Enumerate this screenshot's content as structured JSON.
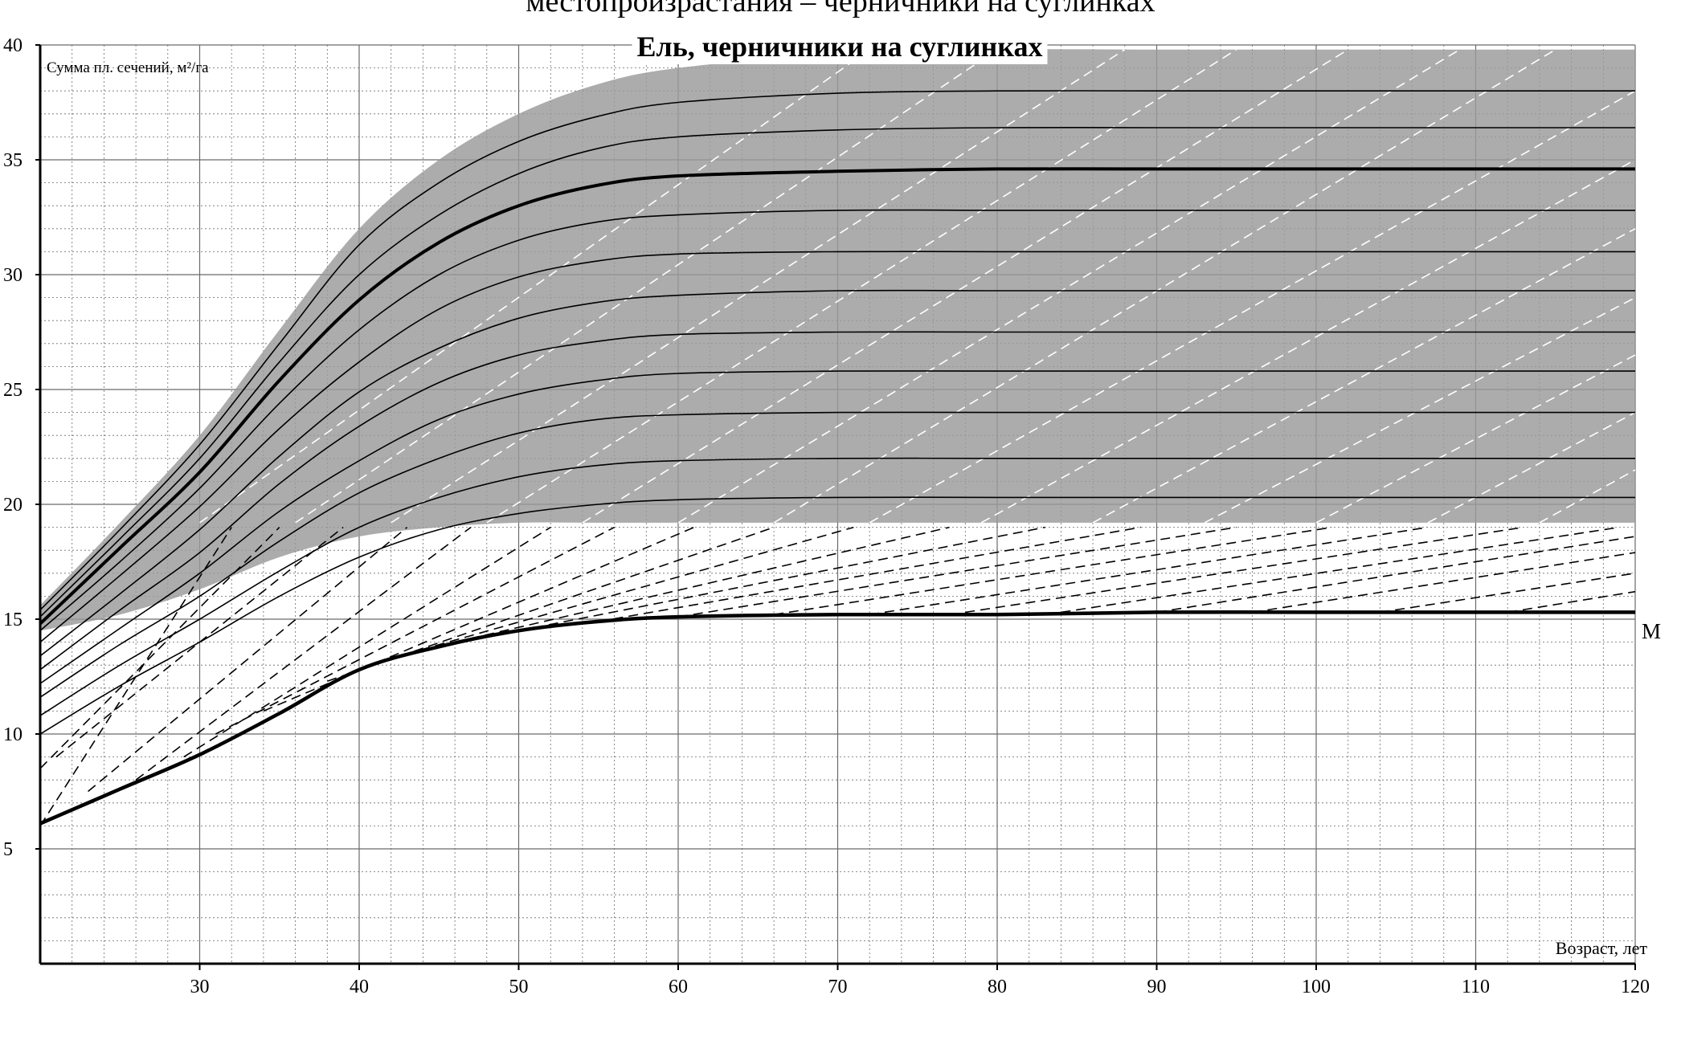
{
  "page_caption": "местопроизрастания – черничники на суглинках",
  "chart_data": {
    "type": "line",
    "title": "Ель, черничники на суглинках",
    "ylabel": "Сумма пл. сечений, м²/га",
    "xlabel": "Возраст, лет",
    "xlim": [
      20,
      120
    ],
    "ylim": [
      0,
      40
    ],
    "x_ticks": [
      30,
      40,
      50,
      60,
      70,
      80,
      90,
      100,
      110,
      120
    ],
    "y_ticks": [
      5,
      10,
      15,
      20,
      25,
      30,
      35,
      40
    ],
    "grid": true,
    "colors": {
      "band": "#9a9a9a",
      "line": "#000000",
      "grid": "#6a6a6a",
      "background": "#ffffff"
    },
    "x": [
      20,
      25,
      30,
      35,
      40,
      45,
      50,
      55,
      60,
      70,
      80,
      90,
      100,
      110,
      120
    ],
    "band": {
      "upper": [
        15.6,
        19.2,
        23.0,
        27.6,
        32.0,
        35.0,
        37.0,
        38.3,
        39.0,
        39.6,
        39.8,
        39.8,
        39.8,
        39.8,
        39.8
      ],
      "lower": [
        14.5,
        15.2,
        16.3,
        17.7,
        18.6,
        19.0,
        19.2,
        19.2,
        19.2,
        19.2,
        19.2,
        19.2,
        19.2,
        19.2,
        19.2
      ]
    },
    "series": [
      {
        "values": [
          15.4,
          18.9,
          22.6,
          27.0,
          31.3,
          34.0,
          35.8,
          36.9,
          37.5,
          37.9,
          38.0,
          38.0,
          38.0,
          38.0,
          38.0
        ]
      },
      {
        "values": [
          15.1,
          18.5,
          22.0,
          26.2,
          30.0,
          32.6,
          34.4,
          35.5,
          36.0,
          36.3,
          36.4,
          36.4,
          36.4,
          36.4,
          36.4
        ]
      },
      {
        "values": [
          14.8,
          18.1,
          21.4,
          25.4,
          28.9,
          31.4,
          33.0,
          33.9,
          34.3,
          34.5,
          34.6,
          34.6,
          34.6,
          34.6,
          34.6
        ],
        "emphasis": true
      },
      {
        "values": [
          14.5,
          17.5,
          20.7,
          24.4,
          27.6,
          30.0,
          31.5,
          32.3,
          32.6,
          32.8,
          32.8,
          32.8,
          32.8,
          32.8,
          32.8
        ]
      },
      {
        "values": [
          14.0,
          16.9,
          19.9,
          23.3,
          26.2,
          28.5,
          29.9,
          30.6,
          30.9,
          31.0,
          31.0,
          31.0,
          31.0,
          31.0,
          31.0
        ]
      },
      {
        "values": [
          13.4,
          16.1,
          18.9,
          22.1,
          24.9,
          26.8,
          28.1,
          28.8,
          29.1,
          29.3,
          29.3,
          29.3,
          29.3,
          29.3,
          29.3
        ]
      },
      {
        "values": [
          12.8,
          15.4,
          17.9,
          20.9,
          23.4,
          25.3,
          26.5,
          27.1,
          27.4,
          27.5,
          27.5,
          27.5,
          27.5,
          27.5,
          27.5
        ]
      },
      {
        "values": [
          12.2,
          14.6,
          17.0,
          19.7,
          21.9,
          23.7,
          24.8,
          25.4,
          25.7,
          25.8,
          25.8,
          25.8,
          25.8,
          25.8,
          25.8
        ]
      },
      {
        "values": [
          11.6,
          13.9,
          16.0,
          18.4,
          20.5,
          22.0,
          23.1,
          23.7,
          23.9,
          24.0,
          24.0,
          24.0,
          24.0,
          24.0,
          24.0
        ]
      },
      {
        "values": [
          10.8,
          13.0,
          15.0,
          17.1,
          19.0,
          20.3,
          21.2,
          21.7,
          21.9,
          22.0,
          22.0,
          22.0,
          22.0,
          22.0,
          22.0
        ]
      },
      {
        "values": [
          10.0,
          12.1,
          14.0,
          16.0,
          17.7,
          18.9,
          19.6,
          20.0,
          20.2,
          20.3,
          20.3,
          20.3,
          20.3,
          20.3,
          20.3
        ]
      }
    ],
    "min_line": {
      "label": "М",
      "values": [
        6.1,
        7.6,
        9.1,
        10.9,
        12.8,
        13.8,
        14.5,
        14.9,
        15.1,
        15.2,
        15.2,
        15.3,
        15.3,
        15.3,
        15.3
      ]
    },
    "dashed_lines": [
      {
        "points": [
          [
            20,
            6.0
          ],
          [
            32,
            19.0
          ]
        ]
      },
      {
        "points": [
          [
            20,
            8.5
          ],
          [
            35,
            19.0
          ]
        ]
      },
      {
        "points": [
          [
            21,
            9.0
          ],
          [
            39,
            19.0
          ]
        ]
      },
      {
        "points": [
          [
            23,
            7.5
          ],
          [
            43,
            19.0
          ]
        ]
      },
      {
        "points": [
          [
            26,
            8.0
          ],
          [
            47,
            19.0
          ]
        ]
      },
      {
        "points": [
          [
            29,
            9.0
          ],
          [
            52,
            19.0
          ]
        ]
      },
      {
        "points": [
          [
            31,
            10.0
          ],
          [
            56,
            19.0
          ]
        ]
      },
      {
        "points": [
          [
            34,
            11.0
          ],
          [
            61,
            19.0
          ]
        ]
      },
      {
        "points": [
          [
            38,
            12.3
          ],
          [
            66,
            19.0
          ]
        ]
      },
      {
        "points": [
          [
            42,
            13.3
          ],
          [
            71,
            19.0
          ]
        ]
      },
      {
        "points": [
          [
            46,
            14.0
          ],
          [
            77,
            19.0
          ]
        ]
      },
      {
        "points": [
          [
            50,
            14.5
          ],
          [
            83,
            19.0
          ]
        ]
      },
      {
        "points": [
          [
            55,
            14.9
          ],
          [
            89,
            19.0
          ]
        ]
      },
      {
        "points": [
          [
            60,
            15.1
          ],
          [
            95,
            19.0
          ]
        ]
      },
      {
        "points": [
          [
            66,
            15.2
          ],
          [
            101,
            19.0
          ]
        ]
      },
      {
        "points": [
          [
            72,
            15.2
          ],
          [
            107,
            19.0
          ]
        ]
      },
      {
        "points": [
          [
            78,
            15.3
          ],
          [
            113,
            19.0
          ]
        ]
      },
      {
        "points": [
          [
            84,
            15.3
          ],
          [
            119,
            19.0
          ]
        ]
      },
      {
        "points": [
          [
            90,
            15.3
          ],
          [
            120,
            18.6
          ]
        ]
      },
      {
        "points": [
          [
            96,
            15.3
          ],
          [
            120,
            17.9
          ]
        ]
      },
      {
        "points": [
          [
            104,
            15.3
          ],
          [
            120,
            17.0
          ]
        ]
      },
      {
        "points": [
          [
            112,
            15.3
          ],
          [
            120,
            16.2
          ]
        ]
      },
      {
        "points": [
          [
            30,
            19.2
          ],
          [
            72,
            39.8
          ]
        ]
      },
      {
        "points": [
          [
            36,
            19.2
          ],
          [
            80,
            39.8
          ]
        ]
      },
      {
        "points": [
          [
            42,
            19.2
          ],
          [
            88,
            39.8
          ]
        ]
      },
      {
        "points": [
          [
            48,
            19.2
          ],
          [
            95,
            39.8
          ]
        ]
      },
      {
        "points": [
          [
            54,
            19.2
          ],
          [
            102,
            39.8
          ]
        ]
      },
      {
        "points": [
          [
            60,
            19.2
          ],
          [
            109,
            39.8
          ]
        ]
      },
      {
        "points": [
          [
            66,
            19.2
          ],
          [
            115,
            39.8
          ]
        ]
      },
      {
        "points": [
          [
            72,
            19.2
          ],
          [
            120,
            38.0
          ]
        ]
      },
      {
        "points": [
          [
            79,
            19.2
          ],
          [
            120,
            35.0
          ]
        ]
      },
      {
        "points": [
          [
            86,
            19.2
          ],
          [
            120,
            32.0
          ]
        ]
      },
      {
        "points": [
          [
            93,
            19.2
          ],
          [
            120,
            29.0
          ]
        ]
      },
      {
        "points": [
          [
            100,
            19.2
          ],
          [
            120,
            26.5
          ]
        ]
      },
      {
        "points": [
          [
            107,
            19.2
          ],
          [
            120,
            24.0
          ]
        ]
      },
      {
        "points": [
          [
            114,
            19.2
          ],
          [
            120,
            21.5
          ]
        ]
      }
    ]
  }
}
